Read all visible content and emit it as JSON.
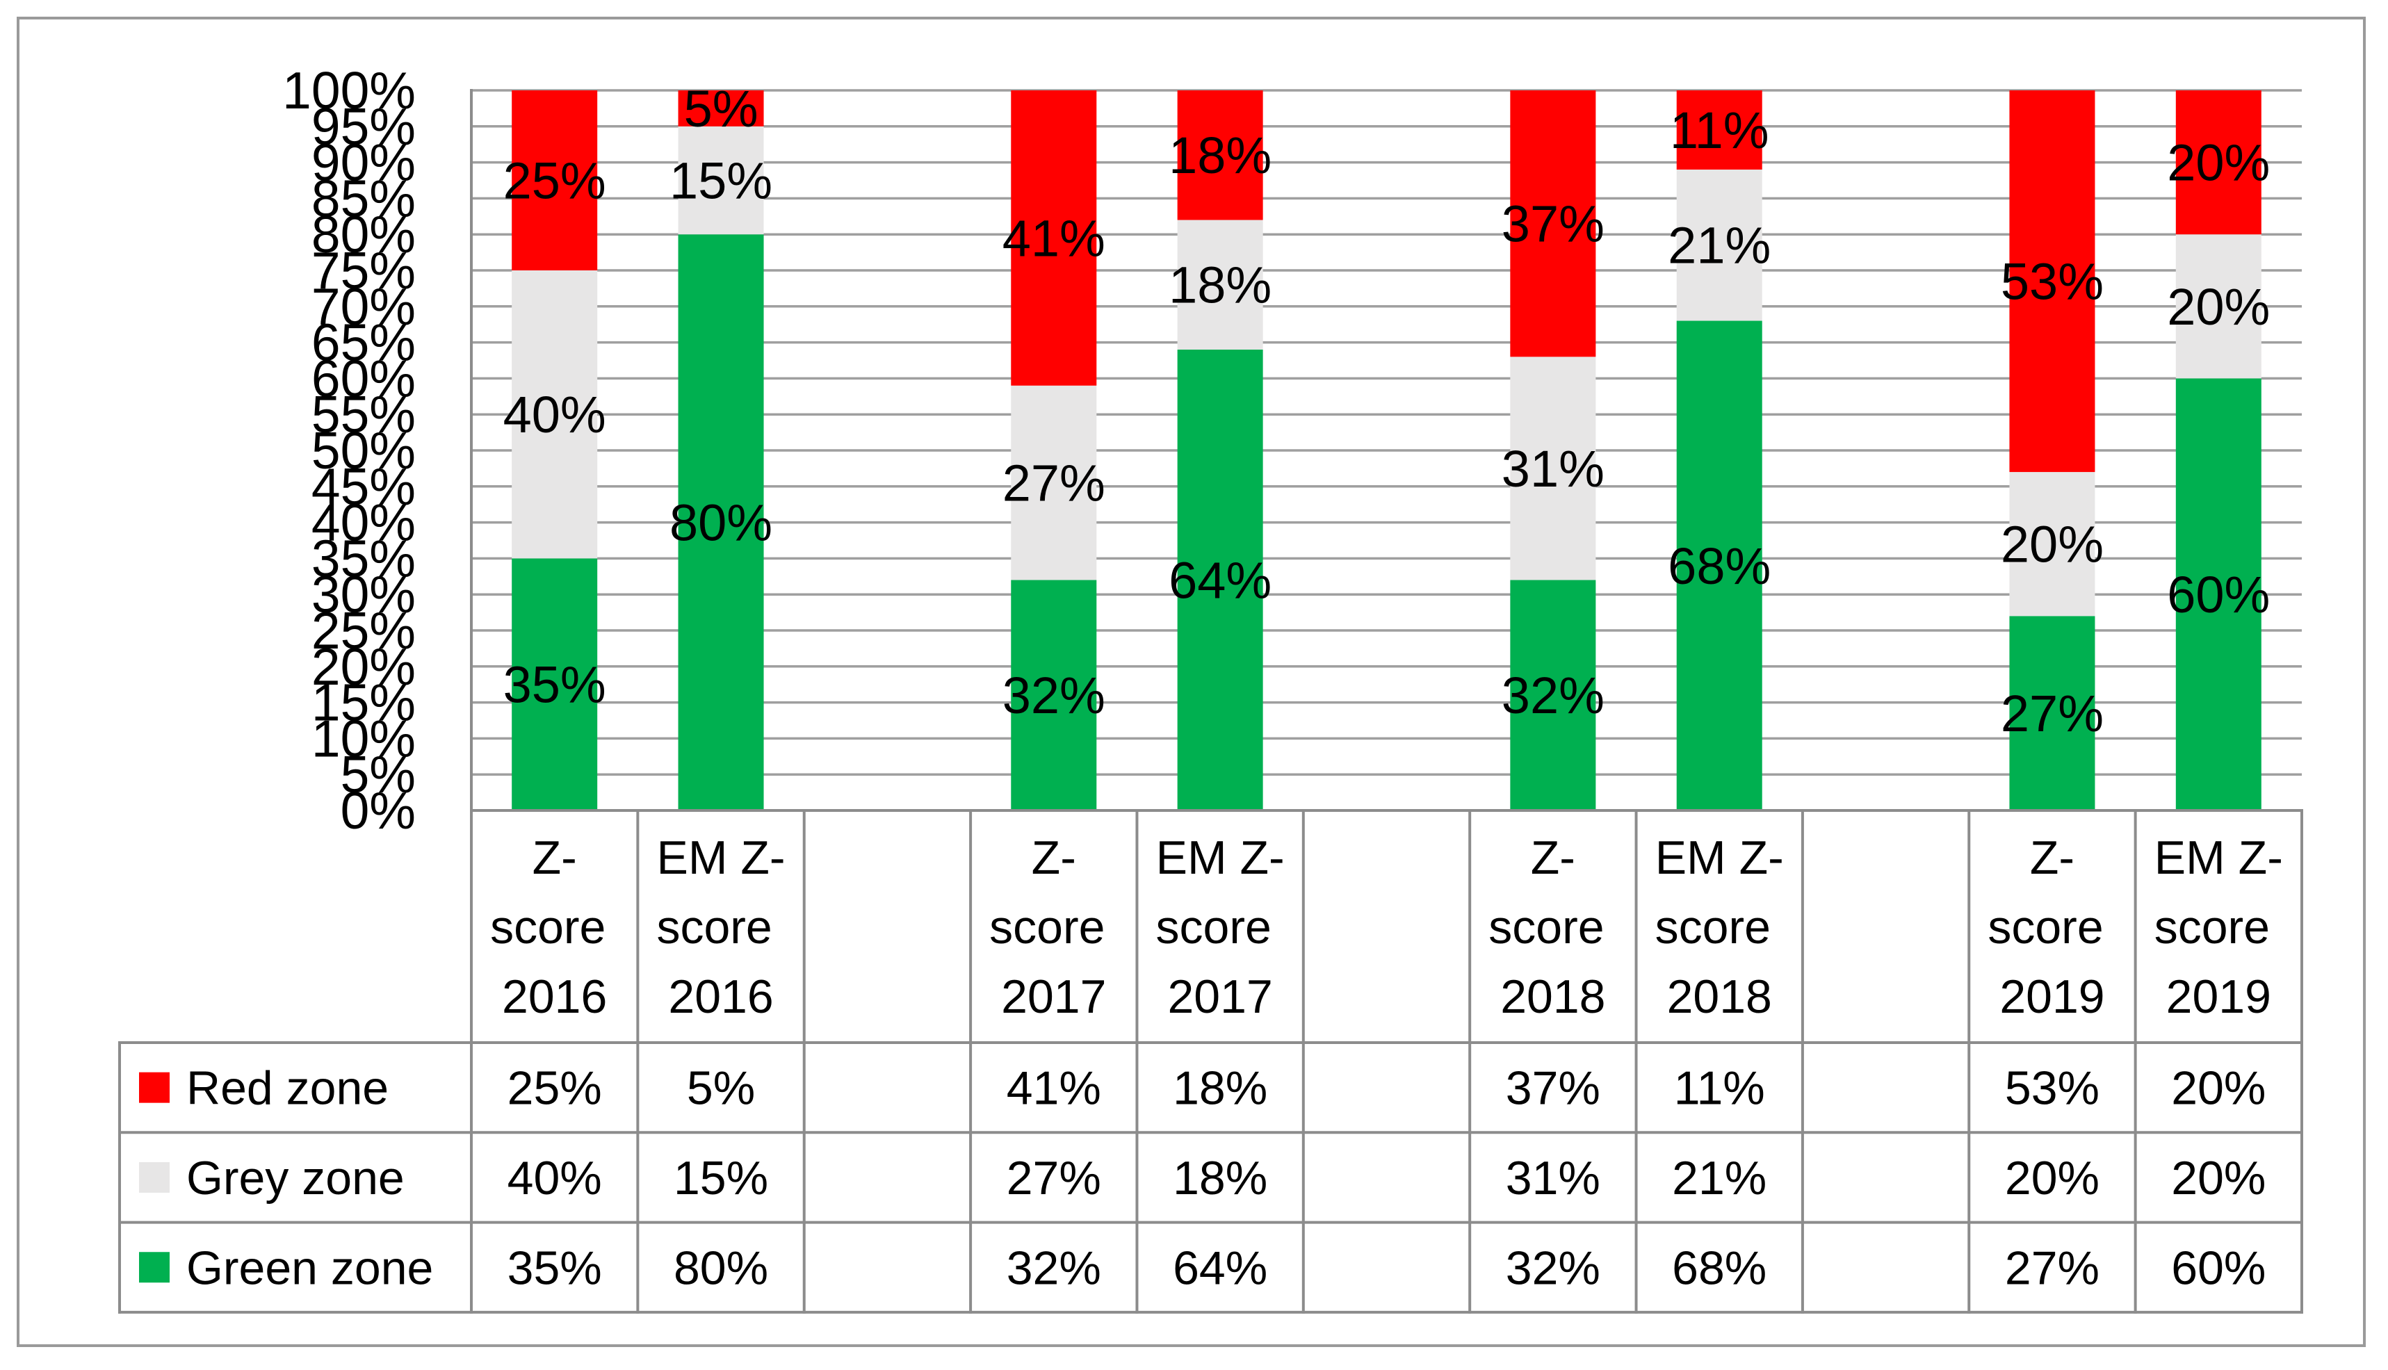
{
  "chart_data": {
    "type": "bar",
    "stacked": true,
    "categories": [
      "Z-score 2016",
      "EM Z-score 2016",
      null,
      "Z-score 2017",
      "EM Z-score 2017",
      null,
      "Z-score 2018",
      "EM Z-score 2018",
      null,
      "Z-score 2019",
      "EM Z-score 2019"
    ],
    "series": [
      {
        "name": "Red zone",
        "color": "#FF0000",
        "values": [
          25,
          5,
          null,
          41,
          18,
          null,
          37,
          11,
          null,
          53,
          20
        ],
        "labels": [
          "25%",
          "5%",
          null,
          "41%",
          "18%",
          null,
          "37%",
          "11%",
          null,
          "53%",
          "20%"
        ]
      },
      {
        "name": "Grey zone",
        "color": "#E7E6E6",
        "values": [
          40,
          15,
          null,
          27,
          18,
          null,
          31,
          21,
          null,
          20,
          20
        ],
        "labels": [
          "40%",
          "15%",
          null,
          "27%",
          "18%",
          null,
          "31%",
          "21%",
          null,
          "20%",
          "20%"
        ]
      },
      {
        "name": "Green zone",
        "color": "#00B050",
        "values": [
          35,
          80,
          null,
          32,
          64,
          null,
          32,
          68,
          null,
          27,
          60
        ],
        "labels": [
          "35%",
          "80%",
          null,
          "32%",
          "64%",
          null,
          "32%",
          "68%",
          null,
          "27%",
          "60%"
        ]
      }
    ],
    "ylim": [
      0,
      100
    ],
    "y_tick_step": 5,
    "y_tick_labels": [
      "0%",
      "5%",
      "10%",
      "15%",
      "20%",
      "25%",
      "30%",
      "35%",
      "40%",
      "45%",
      "50%",
      "55%",
      "60%",
      "65%",
      "70%",
      "75%",
      "80%",
      "85%",
      "90%",
      "95%",
      "100%"
    ],
    "grid": true,
    "data_table": true
  }
}
